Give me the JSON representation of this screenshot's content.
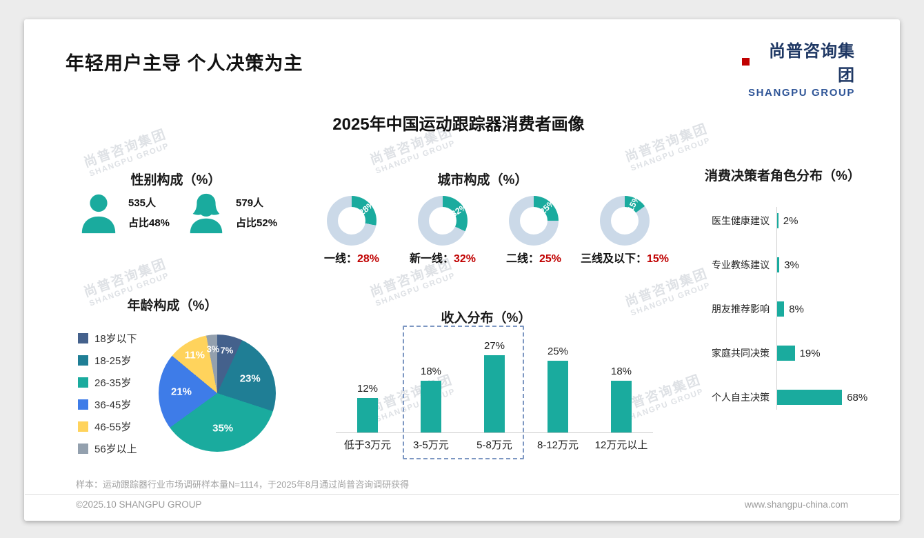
{
  "page": {
    "title": "年轻用户主导 个人决策为主",
    "logo_cn": "尚普咨询集团",
    "logo_en": "SHANGPU GROUP",
    "main_title": "2025年中国运动跟踪器消费者画像",
    "sample_note": "样本：运动跟踪器行业市场调研样本量N=1114，于2025年8月通过尚普咨询调研获得",
    "footer_left": "©2025.10 SHANGPU GROUP",
    "footer_right": "www.shangpu-china.com",
    "watermark_cn": "尚普咨询集团",
    "watermark_en": "SHANGPU GROUP"
  },
  "colors": {
    "teal": "#1AAB9E",
    "donut_base": "#CBD9E8",
    "red": "#C00000",
    "logo_navy": "#1F3864",
    "logo_blue": "#2F5597",
    "pie": [
      "#44618C",
      "#1F7E95",
      "#1AAB9E",
      "#3E7CE8",
      "#FFD35C",
      "#93A0AE"
    ]
  },
  "chart_data": [
    {
      "id": "gender",
      "type": "pictogram",
      "title": "性别构成（%）",
      "items": [
        {
          "icon": "male-icon",
          "count": "535人",
          "share": "占比48%"
        },
        {
          "icon": "female-icon",
          "count": "579人",
          "share": "占比52%"
        }
      ]
    },
    {
      "id": "city",
      "type": "pie",
      "variant": "donut",
      "title": "城市构成（%）",
      "categories": [
        "一线",
        "新一线",
        "二线",
        "三线及以下"
      ],
      "values": [
        28,
        32,
        25,
        15
      ],
      "value_suffix": "%"
    },
    {
      "id": "decision",
      "type": "bar",
      "orientation": "horizontal",
      "title": "消费决策者角色分布（%）",
      "categories": [
        "医生健康建议",
        "专业教练建议",
        "朋友推荐影响",
        "家庭共同决策",
        "个人自主决策"
      ],
      "values": [
        2,
        3,
        8,
        19,
        68
      ],
      "xlim": [
        0,
        100
      ]
    },
    {
      "id": "age",
      "type": "pie",
      "title": "年龄构成（%）",
      "categories": [
        "18岁以下",
        "18-25岁",
        "26-35岁",
        "36-45岁",
        "46-55岁",
        "56岁以上"
      ],
      "values": [
        7,
        23,
        35,
        21,
        11,
        3
      ],
      "legend_position": "left"
    },
    {
      "id": "income",
      "type": "bar",
      "orientation": "vertical",
      "title": "收入分布（%）",
      "categories": [
        "低于3万元",
        "3-5万元",
        "5-8万元",
        "8-12万元",
        "12万元以上"
      ],
      "values": [
        12,
        18,
        27,
        25,
        18
      ],
      "highlight_categories": [
        "3-5万元",
        "5-8万元"
      ],
      "ylim": [
        0,
        30
      ]
    }
  ]
}
